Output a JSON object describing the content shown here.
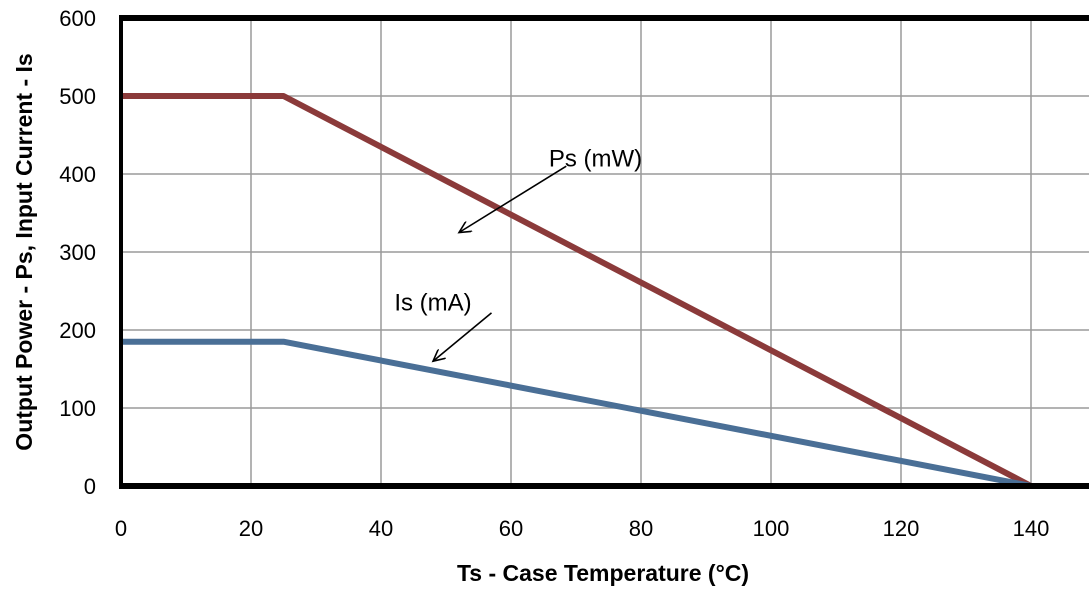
{
  "chart_data": {
    "type": "line",
    "title": "",
    "xlabel": "Ts - Case Temperature (°C)",
    "ylabel": "Output Power - Ps, Input Current - Is",
    "xlim": [
      0,
      140
    ],
    "ylim": [
      0,
      600
    ],
    "x_ticks": [
      0,
      20,
      40,
      60,
      80,
      100,
      120,
      140
    ],
    "y_ticks": [
      0,
      100,
      200,
      300,
      400,
      500,
      600
    ],
    "grid": true,
    "legend": "none",
    "series": [
      {
        "name": "Ps  (mW)",
        "color": "#8B3A3A",
        "x": [
          0,
          25,
          140
        ],
        "y": [
          500,
          500,
          0
        ]
      },
      {
        "name": "Is (mA)",
        "color": "#4A6F96",
        "x": [
          0,
          25,
          140
        ],
        "y": [
          185,
          185,
          0
        ]
      }
    ],
    "annotations": [
      {
        "text": "Ps  (mW)",
        "series": 0,
        "label_at": [
          73,
          420
        ],
        "arrow_from": [
          68.5,
          410
        ],
        "arrow_to": [
          52,
          325
        ]
      },
      {
        "text": "Is (mA)",
        "series": 1,
        "label_at": [
          48,
          235
        ],
        "arrow_from": [
          57,
          222
        ],
        "arrow_to": [
          48,
          160
        ]
      }
    ]
  }
}
